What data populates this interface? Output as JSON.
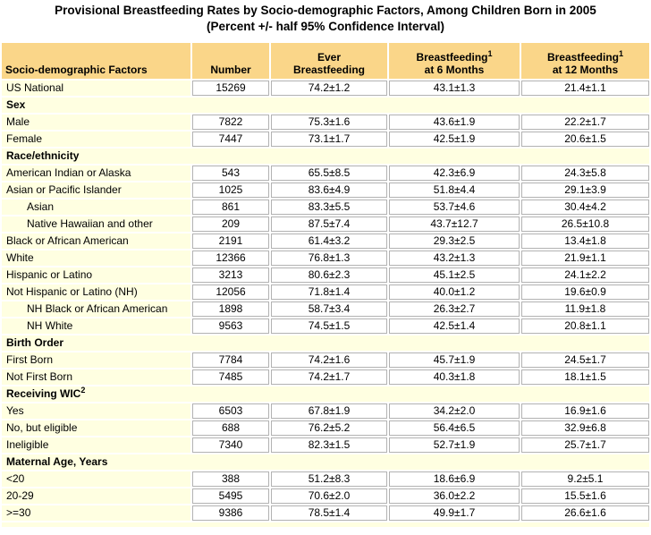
{
  "chart_data": {
    "type": "table",
    "title": "Provisional Breastfeeding Rates by Socio-demographic Factors, Among Children Born in 2005",
    "subtitle": "(Percent +/- half 95% Confidence Interval)",
    "columns": [
      {
        "line1": "Socio-demographic Factors",
        "sup": "",
        "line2": "",
        "align": "left"
      },
      {
        "line1": "Number",
        "sup": "",
        "line2": "",
        "align": "center"
      },
      {
        "line1": "Ever",
        "sup": "",
        "line2": "Breastfeeding",
        "align": "center"
      },
      {
        "line1": "Breastfeeding",
        "sup": "1",
        "line2": "at 6 Months",
        "align": "center"
      },
      {
        "line1": "Breastfeeding",
        "sup": "1",
        "line2": "at 12 Months",
        "align": "center"
      }
    ],
    "rows": [
      {
        "type": "data",
        "label": "US National",
        "indent": false,
        "values": [
          "15269",
          "74.2±1.2",
          "43.1±1.3",
          "21.4±1.1"
        ]
      },
      {
        "type": "section",
        "label": "Sex",
        "sup": ""
      },
      {
        "type": "data",
        "label": "Male",
        "indent": false,
        "values": [
          "7822",
          "75.3±1.6",
          "43.6±1.9",
          "22.2±1.7"
        ]
      },
      {
        "type": "data",
        "label": "Female",
        "indent": false,
        "values": [
          "7447",
          "73.1±1.7",
          "42.5±1.9",
          "20.6±1.5"
        ]
      },
      {
        "type": "section",
        "label": "Race/ethnicity",
        "sup": ""
      },
      {
        "type": "data",
        "label": "American Indian or Alaska",
        "indent": false,
        "values": [
          "543",
          "65.5±8.5",
          "42.3±6.9",
          "24.3±5.8"
        ]
      },
      {
        "type": "data",
        "label": "Asian or Pacific Islander",
        "indent": false,
        "values": [
          "1025",
          "83.6±4.9",
          "51.8±4.4",
          "29.1±3.9"
        ]
      },
      {
        "type": "data",
        "label": "Asian",
        "indent": true,
        "values": [
          "861",
          "83.3±5.5",
          "53.7±4.6",
          "30.4±4.2"
        ]
      },
      {
        "type": "data",
        "label": "Native Hawaiian and other",
        "indent": true,
        "values": [
          "209",
          "87.5±7.4",
          "43.7±12.7",
          "26.5±10.8"
        ]
      },
      {
        "type": "data",
        "label": "Black or African American",
        "indent": false,
        "values": [
          "2191",
          "61.4±3.2",
          "29.3±2.5",
          "13.4±1.8"
        ]
      },
      {
        "type": "data",
        "label": "White",
        "indent": false,
        "values": [
          "12366",
          "76.8±1.3",
          "43.2±1.3",
          "21.9±1.1"
        ]
      },
      {
        "type": "data",
        "label": "Hispanic or Latino",
        "indent": false,
        "values": [
          "3213",
          "80.6±2.3",
          "45.1±2.5",
          "24.1±2.2"
        ]
      },
      {
        "type": "data",
        "label": "Not Hispanic or Latino (NH)",
        "indent": false,
        "values": [
          "12056",
          "71.8±1.4",
          "40.0±1.2",
          "19.6±0.9"
        ]
      },
      {
        "type": "data",
        "label": "NH Black or African American",
        "indent": true,
        "values": [
          "1898",
          "58.7±3.4",
          "26.3±2.7",
          "11.9±1.8"
        ]
      },
      {
        "type": "data",
        "label": "NH White",
        "indent": true,
        "values": [
          "9563",
          "74.5±1.5",
          "42.5±1.4",
          "20.8±1.1"
        ]
      },
      {
        "type": "section",
        "label": "Birth Order",
        "sup": ""
      },
      {
        "type": "data",
        "label": "First Born",
        "indent": false,
        "values": [
          "7784",
          "74.2±1.6",
          "45.7±1.9",
          "24.5±1.7"
        ]
      },
      {
        "type": "data",
        "label": "Not First Born",
        "indent": false,
        "values": [
          "7485",
          "74.2±1.7",
          "40.3±1.8",
          "18.1±1.5"
        ]
      },
      {
        "type": "section",
        "label": "Receiving WIC",
        "sup": "2"
      },
      {
        "type": "data",
        "label": "Yes",
        "indent": false,
        "values": [
          "6503",
          "67.8±1.9",
          "34.2±2.0",
          "16.9±1.6"
        ]
      },
      {
        "type": "data",
        "label": "No, but eligible",
        "indent": false,
        "values": [
          "688",
          "76.2±5.2",
          "56.4±6.5",
          "32.9±6.8"
        ]
      },
      {
        "type": "data",
        "label": "Ineligible",
        "indent": false,
        "values": [
          "7340",
          "82.3±1.5",
          "52.7±1.9",
          "25.7±1.7"
        ]
      },
      {
        "type": "section",
        "label": "Maternal Age, Years",
        "sup": ""
      },
      {
        "type": "data",
        "label": "<20",
        "indent": false,
        "values": [
          "388",
          "51.2±8.3",
          "18.6±6.9",
          "9.2±5.1"
        ]
      },
      {
        "type": "data",
        "label": "20-29",
        "indent": false,
        "values": [
          "5495",
          "70.6±2.0",
          "36.0±2.2",
          "15.5±1.6"
        ]
      },
      {
        "type": "data",
        "label": ">=30",
        "indent": false,
        "values": [
          "9386",
          "78.5±1.4",
          "49.9±1.7",
          "26.6±1.6"
        ]
      }
    ]
  },
  "colors": {
    "header_bg": "#FAD689",
    "row_bg": "#FFFFE1",
    "cell_border": "#B2B2B2",
    "text": "#000000",
    "white": "#FFFFFF"
  }
}
